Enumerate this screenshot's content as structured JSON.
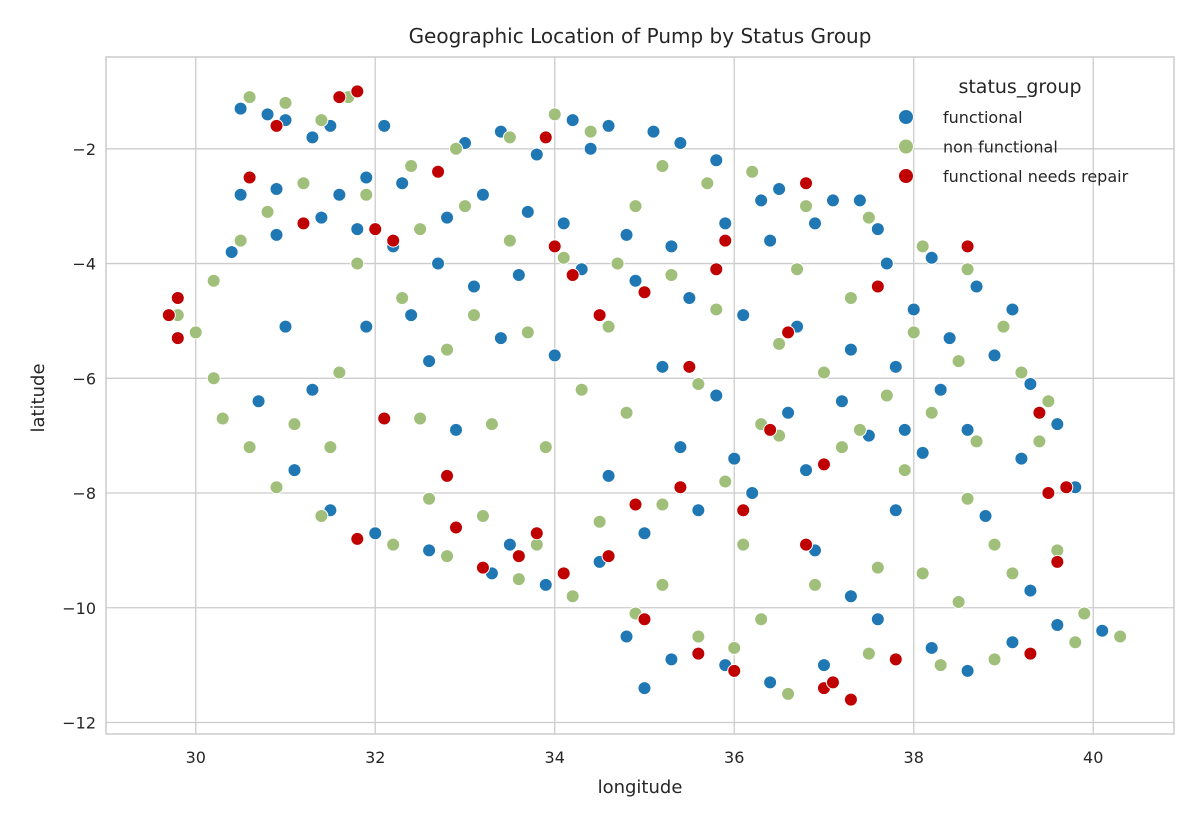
{
  "chart_data": {
    "type": "scatter",
    "title": "Geographic Location of Pump by Status Group",
    "xlabel": "longitude",
    "ylabel": "latitude",
    "xlim": [
      29.0,
      40.9
    ],
    "ylim": [
      -12.2,
      -0.4
    ],
    "xticks": [
      30,
      32,
      34,
      36,
      38,
      40
    ],
    "yticks": [
      -2,
      -4,
      -6,
      -8,
      -10,
      -12
    ],
    "grid": true,
    "legend": {
      "title": "status_group",
      "placement": "top-right"
    },
    "series": [
      {
        "name": "functional",
        "color": "#1f77b4",
        "values": [
          [
            30.5,
            -1.3
          ],
          [
            30.8,
            -1.4
          ],
          [
            31.0,
            -1.5
          ],
          [
            31.5,
            -1.6
          ],
          [
            31.3,
            -1.8
          ],
          [
            30.9,
            -2.7
          ],
          [
            30.5,
            -2.8
          ],
          [
            31.6,
            -2.8
          ],
          [
            31.9,
            -2.5
          ],
          [
            32.1,
            -1.6
          ],
          [
            33.0,
            -1.9
          ],
          [
            33.4,
            -1.7
          ],
          [
            33.8,
            -2.1
          ],
          [
            34.2,
            -1.5
          ],
          [
            34.6,
            -1.6
          ],
          [
            35.1,
            -1.7
          ],
          [
            35.4,
            -1.9
          ],
          [
            35.8,
            -2.2
          ],
          [
            36.5,
            -2.7
          ],
          [
            37.1,
            -2.9
          ],
          [
            37.4,
            -2.9
          ],
          [
            32.3,
            -2.6
          ],
          [
            32.8,
            -3.2
          ],
          [
            33.2,
            -2.8
          ],
          [
            33.7,
            -3.1
          ],
          [
            34.1,
            -3.3
          ],
          [
            34.8,
            -3.5
          ],
          [
            35.3,
            -3.7
          ],
          [
            35.9,
            -3.3
          ],
          [
            36.4,
            -3.6
          ],
          [
            36.9,
            -3.3
          ],
          [
            37.6,
            -3.4
          ],
          [
            38.2,
            -3.9
          ],
          [
            38.7,
            -4.4
          ],
          [
            39.1,
            -4.8
          ],
          [
            38.4,
            -5.3
          ],
          [
            38.9,
            -5.6
          ],
          [
            39.3,
            -6.1
          ],
          [
            39.6,
            -6.8
          ],
          [
            39.8,
            -7.9
          ],
          [
            30.4,
            -3.8
          ],
          [
            30.9,
            -3.5
          ],
          [
            31.4,
            -3.2
          ],
          [
            31.8,
            -3.4
          ],
          [
            32.2,
            -3.7
          ],
          [
            32.7,
            -4.0
          ],
          [
            33.1,
            -4.4
          ],
          [
            33.6,
            -4.2
          ],
          [
            34.3,
            -4.1
          ],
          [
            34.9,
            -4.3
          ],
          [
            35.5,
            -4.6
          ],
          [
            36.1,
            -4.9
          ],
          [
            36.7,
            -5.1
          ],
          [
            37.3,
            -5.5
          ],
          [
            37.8,
            -5.8
          ],
          [
            38.3,
            -6.2
          ],
          [
            38.6,
            -6.9
          ],
          [
            38.1,
            -7.3
          ],
          [
            37.5,
            -7.0
          ],
          [
            36.8,
            -7.6
          ],
          [
            36.2,
            -8.0
          ],
          [
            35.6,
            -8.3
          ],
          [
            35.0,
            -8.7
          ],
          [
            34.5,
            -9.2
          ],
          [
            33.9,
            -9.6
          ],
          [
            33.3,
            -9.4
          ],
          [
            32.6,
            -9.0
          ],
          [
            32.0,
            -8.7
          ],
          [
            31.5,
            -8.3
          ],
          [
            31.1,
            -7.6
          ],
          [
            30.7,
            -6.4
          ],
          [
            31.3,
            -6.2
          ],
          [
            34.8,
            -10.5
          ],
          [
            35.3,
            -10.9
          ],
          [
            35.9,
            -11.0
          ],
          [
            36.4,
            -11.3
          ],
          [
            37.0,
            -11.0
          ],
          [
            37.6,
            -10.2
          ],
          [
            38.2,
            -10.7
          ],
          [
            38.6,
            -11.1
          ],
          [
            39.1,
            -10.6
          ],
          [
            39.6,
            -10.3
          ],
          [
            40.1,
            -10.4
          ],
          [
            39.3,
            -9.7
          ],
          [
            38.8,
            -8.4
          ],
          [
            39.2,
            -7.4
          ],
          [
            31.9,
            -5.1
          ],
          [
            32.4,
            -4.9
          ],
          [
            33.4,
            -5.3
          ],
          [
            34.0,
            -5.6
          ],
          [
            35.2,
            -5.8
          ],
          [
            35.8,
            -6.3
          ],
          [
            36.6,
            -6.6
          ],
          [
            37.2,
            -6.4
          ],
          [
            37.9,
            -6.9
          ],
          [
            35.4,
            -7.2
          ],
          [
            36.0,
            -7.4
          ],
          [
            34.6,
            -7.7
          ],
          [
            33.5,
            -8.9
          ],
          [
            37.3,
            -9.8
          ],
          [
            31.0,
            -5.1
          ],
          [
            32.9,
            -6.9
          ],
          [
            38.0,
            -4.8
          ],
          [
            37.7,
            -4.0
          ],
          [
            36.3,
            -2.9
          ],
          [
            34.4,
            -2.0
          ],
          [
            32.6,
            -5.7
          ],
          [
            36.9,
            -9.0
          ],
          [
            37.8,
            -8.3
          ],
          [
            35.0,
            -11.4
          ]
        ]
      },
      {
        "name": "non functional",
        "color": "#9fbf7a",
        "values": [
          [
            30.6,
            -1.1
          ],
          [
            31.0,
            -1.2
          ],
          [
            31.7,
            -1.1
          ],
          [
            31.4,
            -1.5
          ],
          [
            32.4,
            -2.3
          ],
          [
            32.9,
            -2.0
          ],
          [
            33.5,
            -1.8
          ],
          [
            34.0,
            -1.4
          ],
          [
            34.4,
            -1.7
          ],
          [
            35.2,
            -2.3
          ],
          [
            35.7,
            -2.6
          ],
          [
            36.2,
            -2.4
          ],
          [
            36.8,
            -3.0
          ],
          [
            37.5,
            -3.2
          ],
          [
            38.1,
            -3.7
          ],
          [
            38.6,
            -4.1
          ],
          [
            39.0,
            -5.1
          ],
          [
            38.5,
            -5.7
          ],
          [
            39.5,
            -6.4
          ],
          [
            39.4,
            -7.1
          ],
          [
            38.9,
            -8.9
          ],
          [
            39.1,
            -9.4
          ],
          [
            38.5,
            -9.9
          ],
          [
            39.8,
            -10.6
          ],
          [
            38.9,
            -10.9
          ],
          [
            38.3,
            -11.0
          ],
          [
            37.5,
            -10.8
          ],
          [
            36.6,
            -11.5
          ],
          [
            36.0,
            -10.7
          ],
          [
            35.6,
            -10.5
          ],
          [
            34.9,
            -10.1
          ],
          [
            34.2,
            -9.8
          ],
          [
            33.6,
            -9.5
          ],
          [
            32.8,
            -9.1
          ],
          [
            32.2,
            -8.9
          ],
          [
            31.4,
            -8.4
          ],
          [
            30.9,
            -7.9
          ],
          [
            30.6,
            -7.2
          ],
          [
            30.3,
            -6.7
          ],
          [
            30.2,
            -6.0
          ],
          [
            30.0,
            -5.2
          ],
          [
            29.8,
            -4.9
          ],
          [
            30.2,
            -4.3
          ],
          [
            30.5,
            -3.6
          ],
          [
            30.8,
            -3.1
          ],
          [
            31.2,
            -2.6
          ],
          [
            31.9,
            -2.8
          ],
          [
            32.5,
            -3.4
          ],
          [
            33.0,
            -3.0
          ],
          [
            33.5,
            -3.6
          ],
          [
            34.1,
            -3.9
          ],
          [
            34.7,
            -4.0
          ],
          [
            35.3,
            -4.2
          ],
          [
            35.8,
            -4.8
          ],
          [
            36.5,
            -5.4
          ],
          [
            37.0,
            -5.9
          ],
          [
            37.7,
            -6.3
          ],
          [
            38.2,
            -6.6
          ],
          [
            38.7,
            -7.1
          ],
          [
            37.9,
            -7.6
          ],
          [
            37.2,
            -7.2
          ],
          [
            36.5,
            -7.0
          ],
          [
            35.9,
            -7.8
          ],
          [
            35.2,
            -8.2
          ],
          [
            34.5,
            -8.5
          ],
          [
            33.8,
            -8.9
          ],
          [
            33.2,
            -8.4
          ],
          [
            32.6,
            -8.1
          ],
          [
            34.3,
            -6.2
          ],
          [
            33.7,
            -5.2
          ],
          [
            32.8,
            -5.5
          ],
          [
            31.6,
            -5.9
          ],
          [
            31.1,
            -6.8
          ],
          [
            33.3,
            -6.8
          ],
          [
            33.9,
            -7.2
          ],
          [
            34.8,
            -6.6
          ],
          [
            35.6,
            -6.1
          ],
          [
            36.3,
            -6.8
          ],
          [
            37.4,
            -6.9
          ],
          [
            38.0,
            -5.2
          ],
          [
            36.9,
            -9.6
          ],
          [
            37.6,
            -9.3
          ],
          [
            38.1,
            -9.4
          ],
          [
            36.3,
            -10.2
          ],
          [
            35.2,
            -9.6
          ],
          [
            39.6,
            -9.0
          ],
          [
            31.8,
            -4.0
          ],
          [
            32.3,
            -4.6
          ],
          [
            34.9,
            -3.0
          ],
          [
            36.7,
            -4.1
          ],
          [
            37.3,
            -4.6
          ],
          [
            33.1,
            -4.9
          ],
          [
            39.2,
            -5.9
          ],
          [
            39.9,
            -10.1
          ],
          [
            40.3,
            -10.5
          ],
          [
            38.6,
            -8.1
          ],
          [
            36.1,
            -8.9
          ],
          [
            34.6,
            -5.1
          ],
          [
            31.5,
            -7.2
          ],
          [
            32.5,
            -6.7
          ]
        ]
      },
      {
        "name": "functional needs repair",
        "color": "#c00000",
        "values": [
          [
            29.8,
            -4.6
          ],
          [
            29.7,
            -4.9
          ],
          [
            29.8,
            -5.3
          ],
          [
            30.6,
            -2.5
          ],
          [
            31.6,
            -1.1
          ],
          [
            31.8,
            -1.0
          ],
          [
            32.0,
            -3.4
          ],
          [
            32.2,
            -3.6
          ],
          [
            32.1,
            -6.7
          ],
          [
            32.8,
            -7.7
          ],
          [
            32.9,
            -8.6
          ],
          [
            31.8,
            -8.8
          ],
          [
            33.2,
            -9.3
          ],
          [
            33.6,
            -9.1
          ],
          [
            34.0,
            -3.7
          ],
          [
            34.2,
            -4.2
          ],
          [
            34.5,
            -4.9
          ],
          [
            34.1,
            -9.4
          ],
          [
            34.6,
            -9.1
          ],
          [
            35.0,
            -10.2
          ],
          [
            35.6,
            -10.8
          ],
          [
            36.0,
            -11.1
          ],
          [
            37.0,
            -11.4
          ],
          [
            37.1,
            -11.3
          ],
          [
            37.3,
            -11.6
          ],
          [
            37.8,
            -10.9
          ],
          [
            39.3,
            -10.8
          ],
          [
            39.6,
            -9.2
          ],
          [
            39.5,
            -8.0
          ],
          [
            39.7,
            -7.9
          ],
          [
            39.4,
            -6.6
          ],
          [
            38.6,
            -3.7
          ],
          [
            37.6,
            -4.4
          ],
          [
            36.8,
            -2.6
          ],
          [
            35.9,
            -3.6
          ],
          [
            35.0,
            -4.5
          ],
          [
            35.5,
            -5.8
          ],
          [
            36.4,
            -6.9
          ],
          [
            37.0,
            -7.5
          ],
          [
            36.8,
            -8.9
          ],
          [
            36.1,
            -8.3
          ],
          [
            35.4,
            -7.9
          ],
          [
            34.9,
            -8.2
          ],
          [
            33.8,
            -8.7
          ],
          [
            30.9,
            -1.6
          ],
          [
            31.2,
            -3.3
          ],
          [
            32.7,
            -2.4
          ],
          [
            33.9,
            -1.8
          ],
          [
            35.8,
            -4.1
          ],
          [
            36.6,
            -5.2
          ]
        ]
      }
    ]
  }
}
